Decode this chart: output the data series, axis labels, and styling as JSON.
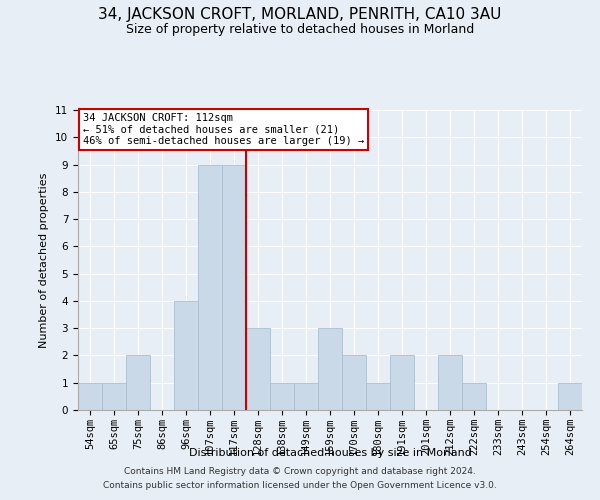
{
  "title": "34, JACKSON CROFT, MORLAND, PENRITH, CA10 3AU",
  "subtitle": "Size of property relative to detached houses in Morland",
  "xlabel": "Distribution of detached houses by size in Morland",
  "ylabel": "Number of detached properties",
  "categories": [
    "54sqm",
    "65sqm",
    "75sqm",
    "86sqm",
    "96sqm",
    "107sqm",
    "117sqm",
    "128sqm",
    "138sqm",
    "149sqm",
    "159sqm",
    "170sqm",
    "180sqm",
    "191sqm",
    "201sqm",
    "212sqm",
    "222sqm",
    "233sqm",
    "243sqm",
    "254sqm",
    "264sqm"
  ],
  "values": [
    1,
    1,
    2,
    0,
    4,
    9,
    9,
    3,
    1,
    1,
    3,
    2,
    1,
    2,
    0,
    2,
    1,
    0,
    0,
    0,
    1
  ],
  "bar_color": "#c9d9e8",
  "bar_edge_color": "#aabfcf",
  "reference_line_index": 6,
  "reference_line_color": "#cc0000",
  "annotation_line1": "34 JACKSON CROFT: 112sqm",
  "annotation_line2": "← 51% of detached houses are smaller (21)",
  "annotation_line3": "46% of semi-detached houses are larger (19) →",
  "annotation_box_facecolor": "#ffffff",
  "annotation_box_edgecolor": "#cc0000",
  "ylim": [
    0,
    11
  ],
  "yticks": [
    0,
    1,
    2,
    3,
    4,
    5,
    6,
    7,
    8,
    9,
    10,
    11
  ],
  "bg_color": "#e8eef5",
  "plot_bg_color": "#e8eef5",
  "footer_line1": "Contains HM Land Registry data © Crown copyright and database right 2024.",
  "footer_line2": "Contains public sector information licensed under the Open Government Licence v3.0.",
  "title_fontsize": 11,
  "subtitle_fontsize": 9,
  "axis_label_fontsize": 8,
  "tick_fontsize": 7.5,
  "footer_fontsize": 6.5
}
